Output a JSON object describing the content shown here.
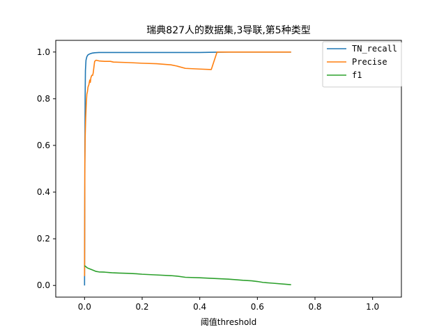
{
  "chart_data": {
    "type": "line",
    "title": "瑞典827人的数据集,3导联,第5种类型",
    "xlabel": "阈值threshold",
    "ylabel": "",
    "xlim": [
      -0.1,
      1.1
    ],
    "ylim": [
      -0.05,
      1.05
    ],
    "xticks": [
      0.0,
      0.2,
      0.4,
      0.6,
      0.8,
      1.0
    ],
    "xtick_labels": [
      "0.0",
      "0.2",
      "0.4",
      "0.6",
      "0.8",
      "1.0"
    ],
    "yticks": [
      0.0,
      0.2,
      0.4,
      0.6,
      0.8,
      1.0
    ],
    "ytick_labels": [
      "0.0",
      "0.2",
      "0.4",
      "0.6",
      "0.8",
      "1.0"
    ],
    "grid": false,
    "legend": "top-right",
    "series": [
      {
        "name": "TN_recall",
        "color": "#1f77b4",
        "x": [
          0.0,
          0.001,
          0.002,
          0.003,
          0.005,
          0.008,
          0.012,
          0.018,
          0.025,
          0.035,
          0.05,
          0.1,
          0.2,
          0.3,
          0.4,
          0.45,
          0.5,
          0.6,
          0.7,
          0.717
        ],
        "y": [
          0.0,
          0.5,
          0.8,
          0.92,
          0.965,
          0.98,
          0.988,
          0.992,
          0.995,
          0.997,
          0.998,
          0.998,
          0.998,
          0.998,
          0.998,
          0.999,
          1.0,
          1.0,
          1.0,
          1.0
        ]
      },
      {
        "name": "Precise",
        "color": "#ff7f0e",
        "x": [
          0.0,
          0.001,
          0.002,
          0.004,
          0.006,
          0.008,
          0.01,
          0.012,
          0.015,
          0.018,
          0.02,
          0.022,
          0.025,
          0.028,
          0.03,
          0.032,
          0.035,
          0.04,
          0.05,
          0.07,
          0.09,
          0.1,
          0.15,
          0.2,
          0.25,
          0.3,
          0.32,
          0.35,
          0.4,
          0.44,
          0.46,
          0.5,
          0.6,
          0.7,
          0.717
        ],
        "y": [
          0.04,
          0.52,
          0.63,
          0.72,
          0.78,
          0.82,
          0.83,
          0.85,
          0.86,
          0.88,
          0.87,
          0.89,
          0.9,
          0.9,
          0.91,
          0.93,
          0.96,
          0.965,
          0.962,
          0.96,
          0.96,
          0.957,
          0.955,
          0.952,
          0.95,
          0.945,
          0.94,
          0.93,
          0.927,
          0.925,
          1.0,
          1.0,
          1.0,
          1.0,
          1.0
        ]
      },
      {
        "name": "f1",
        "color": "#2ca02c",
        "x": [
          0.0,
          0.005,
          0.01,
          0.02,
          0.03,
          0.04,
          0.05,
          0.07,
          0.09,
          0.1,
          0.12,
          0.15,
          0.18,
          0.2,
          0.25,
          0.3,
          0.32,
          0.35,
          0.4,
          0.45,
          0.5,
          0.52,
          0.55,
          0.58,
          0.6,
          0.62,
          0.65,
          0.7,
          0.717
        ],
        "y": [
          0.085,
          0.08,
          0.075,
          0.07,
          0.065,
          0.06,
          0.058,
          0.057,
          0.055,
          0.054,
          0.053,
          0.052,
          0.05,
          0.048,
          0.045,
          0.042,
          0.04,
          0.035,
          0.033,
          0.03,
          0.027,
          0.025,
          0.022,
          0.02,
          0.017,
          0.013,
          0.01,
          0.005,
          0.003
        ]
      }
    ]
  }
}
